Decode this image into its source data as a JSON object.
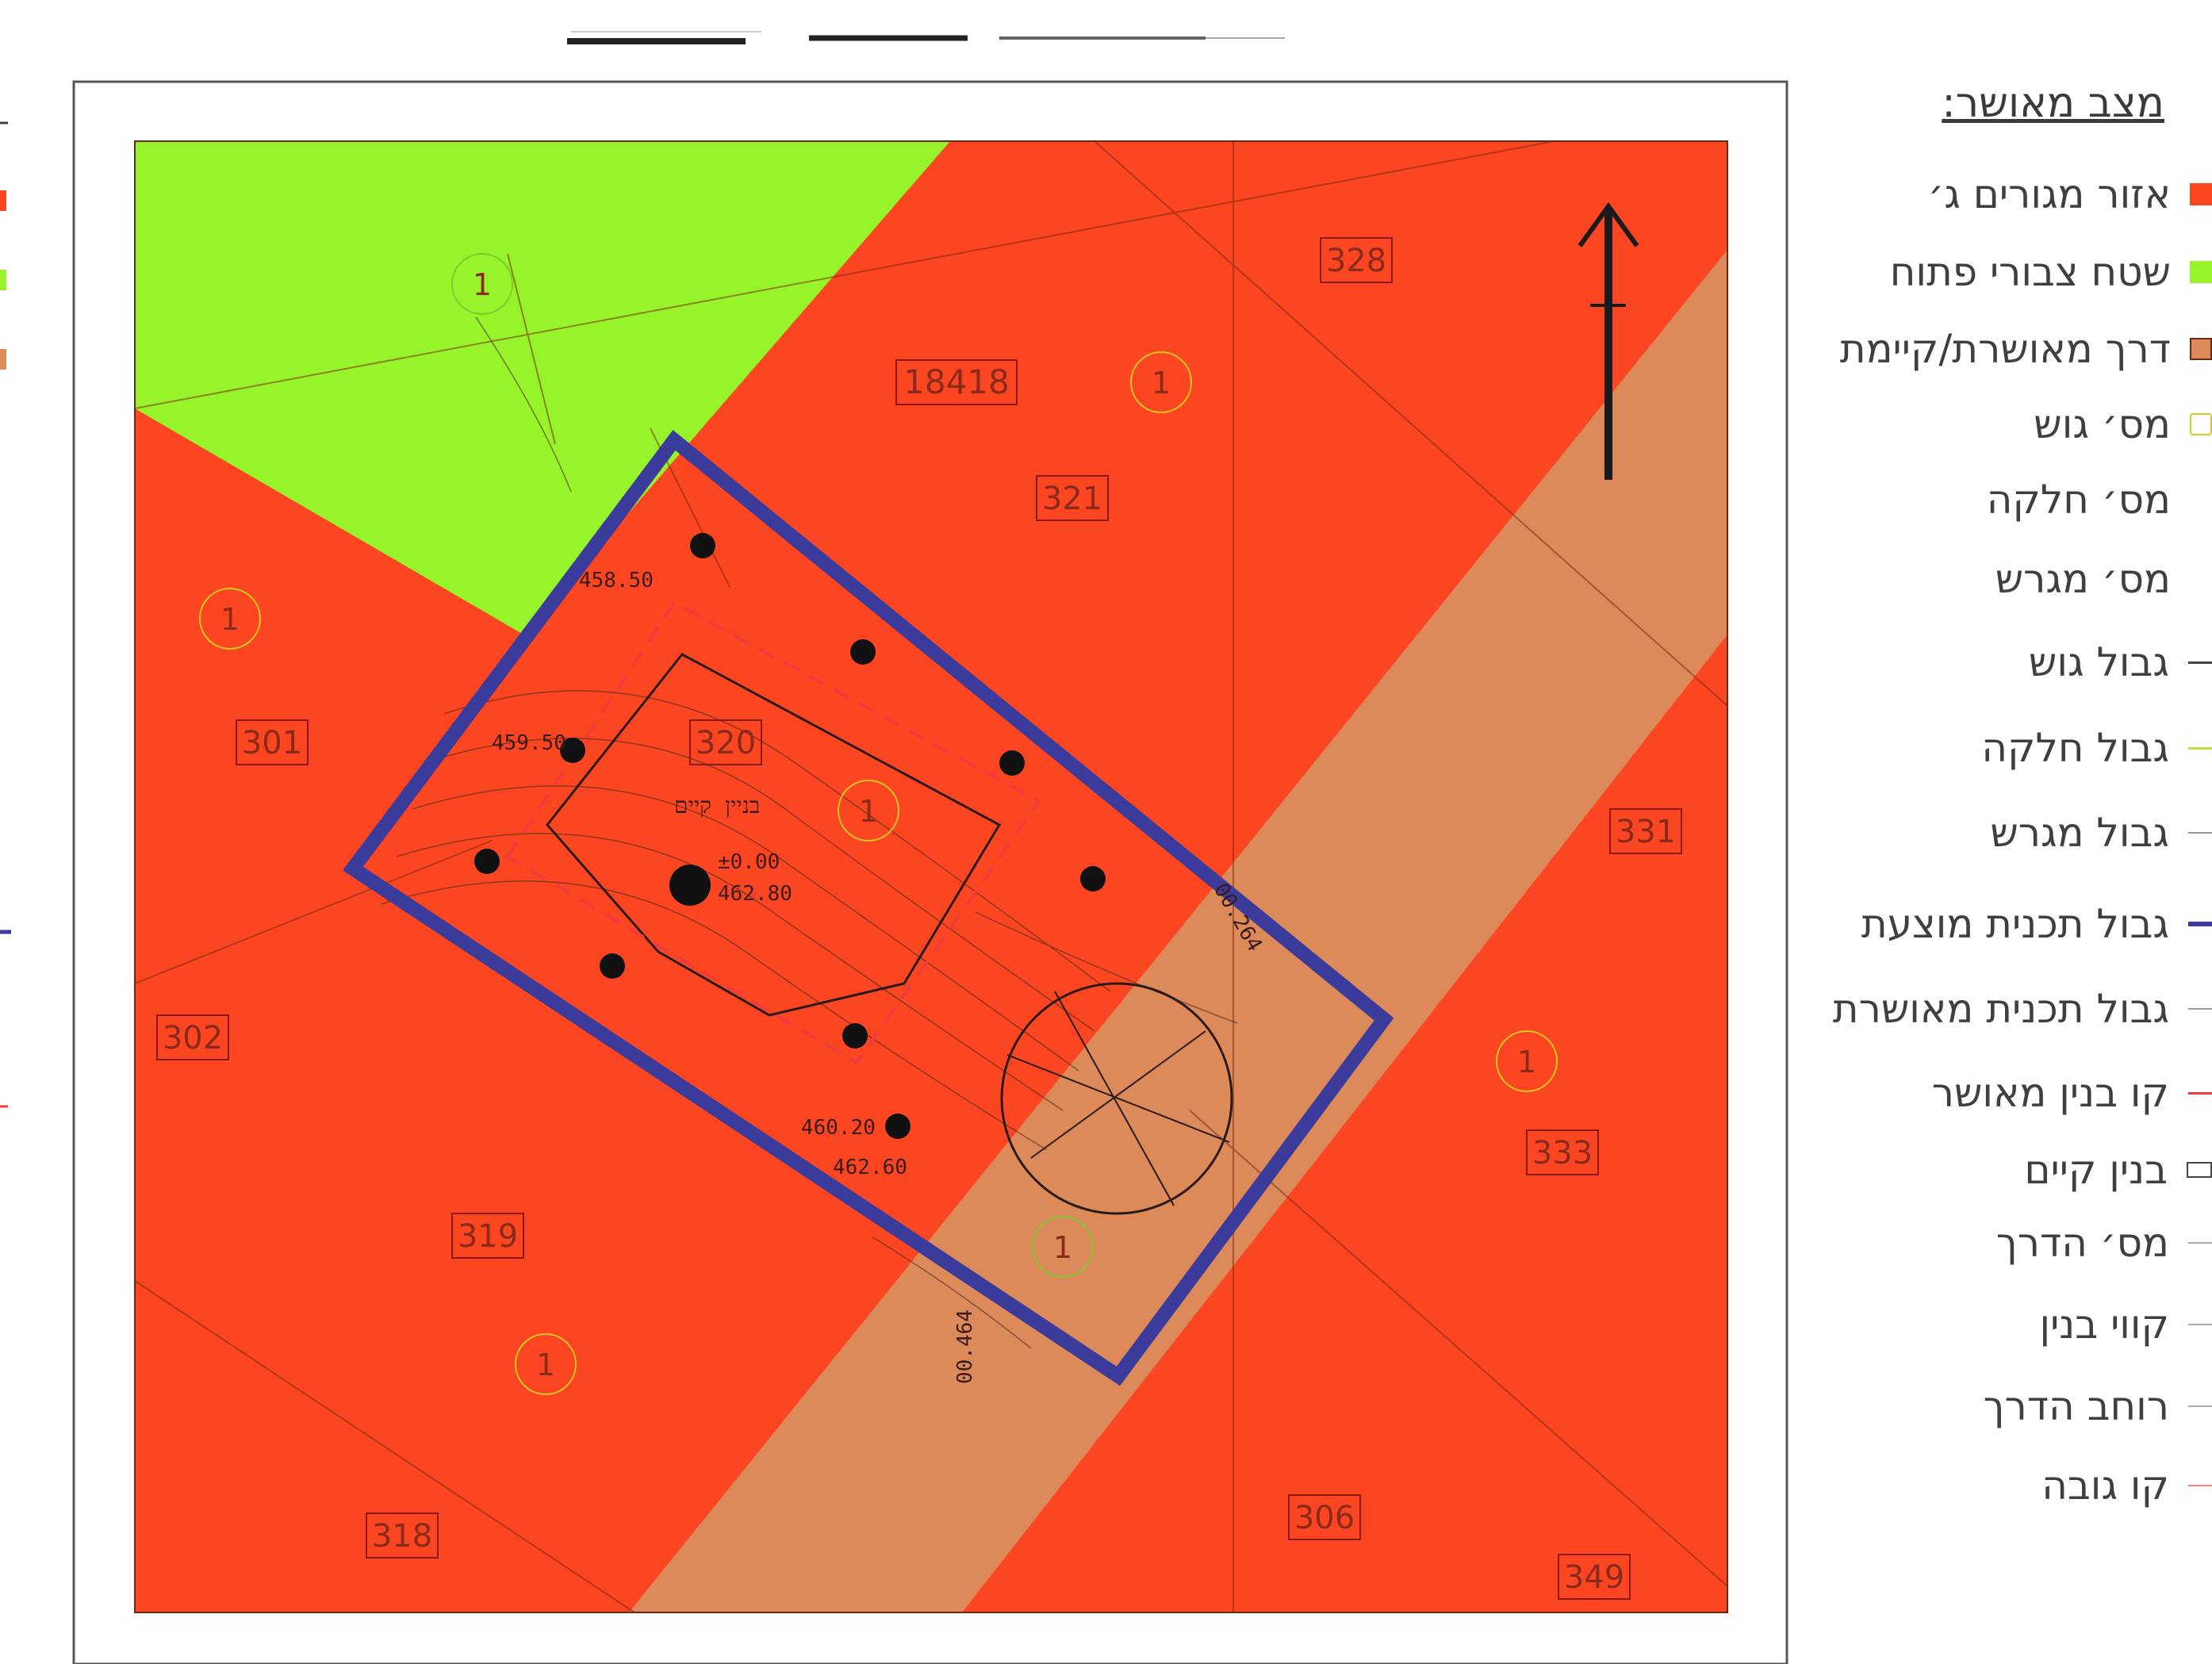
{
  "colors": {
    "residential": "#fb4621",
    "open_space": "#98f42a",
    "road": "#dd8a5a",
    "plan_border": "#3a3b9a",
    "building_line": "#f03c3c"
  },
  "map": {
    "block_number": "18418",
    "parcels": [
      "328",
      "321",
      "320",
      "301",
      "331",
      "302",
      "319",
      "318",
      "333",
      "306",
      "349"
    ],
    "plot_numbers": [
      "1",
      "1",
      "1",
      "1",
      "1",
      "1",
      "1"
    ],
    "elevation_labels": [
      "±0.00",
      "462.80",
      "459.50",
      "458.50",
      "460.20",
      "462.60"
    ],
    "existing_building": "בניין קיים",
    "road_labels": [
      "00.464",
      "00.264"
    ],
    "north_arrow": "north-arrow-icon"
  },
  "legend": {
    "title": "מצב מאושר:",
    "items": [
      {
        "label": "אזור מגורים ג׳"
      },
      {
        "label": "שטח צבורי פתוח"
      },
      {
        "label": "דרך מאושרת/קיימת"
      },
      {
        "label": "מס׳ גוש"
      },
      {
        "label": "מס׳ חלקה"
      },
      {
        "label": "מס׳ מגרש"
      },
      {
        "label": "גבול גוש"
      },
      {
        "label": "גבול חלקה"
      },
      {
        "label": "גבול מגרש"
      },
      {
        "label": "גבול תכנית מוצעת"
      },
      {
        "label": "גבול תכנית מאושרת"
      },
      {
        "label": "קו בנין מאושר"
      },
      {
        "label": "בנין קיים"
      },
      {
        "label": "מס׳ הדרך"
      },
      {
        "label": "קווי בנין"
      },
      {
        "label": "רוחב הדרך"
      },
      {
        "label": "קו גובה"
      }
    ]
  }
}
